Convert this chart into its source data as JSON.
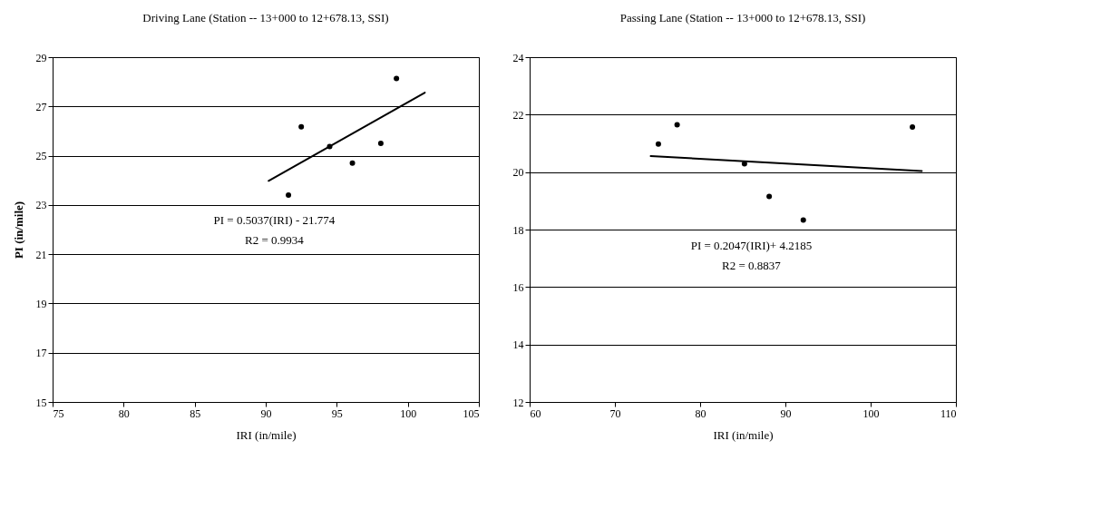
{
  "chart_data": [
    {
      "type": "scatter",
      "title": "Driving Lane (Station -- 13+000 to 12+678.13, SSI)",
      "xlabel": "IRI (in/mile)",
      "ylabel": "PI (in/mile)",
      "xlim": [
        75,
        105
      ],
      "xticks": [
        75,
        80,
        85,
        90,
        95,
        100,
        105
      ],
      "ylim": [
        15,
        29
      ],
      "yticks": [
        15,
        17,
        19,
        21,
        23,
        25,
        27,
        29
      ],
      "grid": "y",
      "annotations": [
        "PI = 0.5037(IRI) - 21.774",
        "R2 = 0.9934"
      ],
      "series": [
        {
          "color": "#000000",
          "marker": "circle",
          "x": [
            91.6,
            92.5,
            94.5,
            96.1,
            98.1,
            99.2
          ],
          "values": [
            23.4,
            26.17,
            25.37,
            24.7,
            25.5,
            28.13
          ]
        },
        {
          "type": "line",
          "color": "#000000",
          "marker": "none",
          "line_style": "solid",
          "x": [
            90.2,
            101.2
          ],
          "values": [
            23.98,
            27.56
          ]
        }
      ]
    },
    {
      "type": "scatter",
      "title": "Passing Lane (Station -- 13+000 to 12+678.13, SSI)",
      "xlabel": "IRI (in/mile)",
      "xlim": [
        60,
        110
      ],
      "xticks": [
        60,
        70,
        80,
        90,
        100,
        110
      ],
      "ylim": [
        12,
        24
      ],
      "yticks": [
        12,
        14,
        16,
        18,
        20,
        22,
        24
      ],
      "grid": "y",
      "annotations": [
        "PI = 0.2047(IRI)+ 4.2185",
        "R2 = 0.8837"
      ],
      "series": [
        {
          "color": "#000000",
          "marker": "circle",
          "x": [
            75.1,
            77.3,
            85.2,
            88.1,
            92.1,
            104.9
          ],
          "values": [
            20.98,
            21.65,
            20.29,
            19.15,
            18.33,
            21.57
          ]
        },
        {
          "type": "line",
          "color": "#000000",
          "marker": "none",
          "line_style": "solid",
          "x": [
            74.2,
            106.0
          ],
          "values": [
            20.56,
            20.04
          ]
        }
      ]
    }
  ]
}
